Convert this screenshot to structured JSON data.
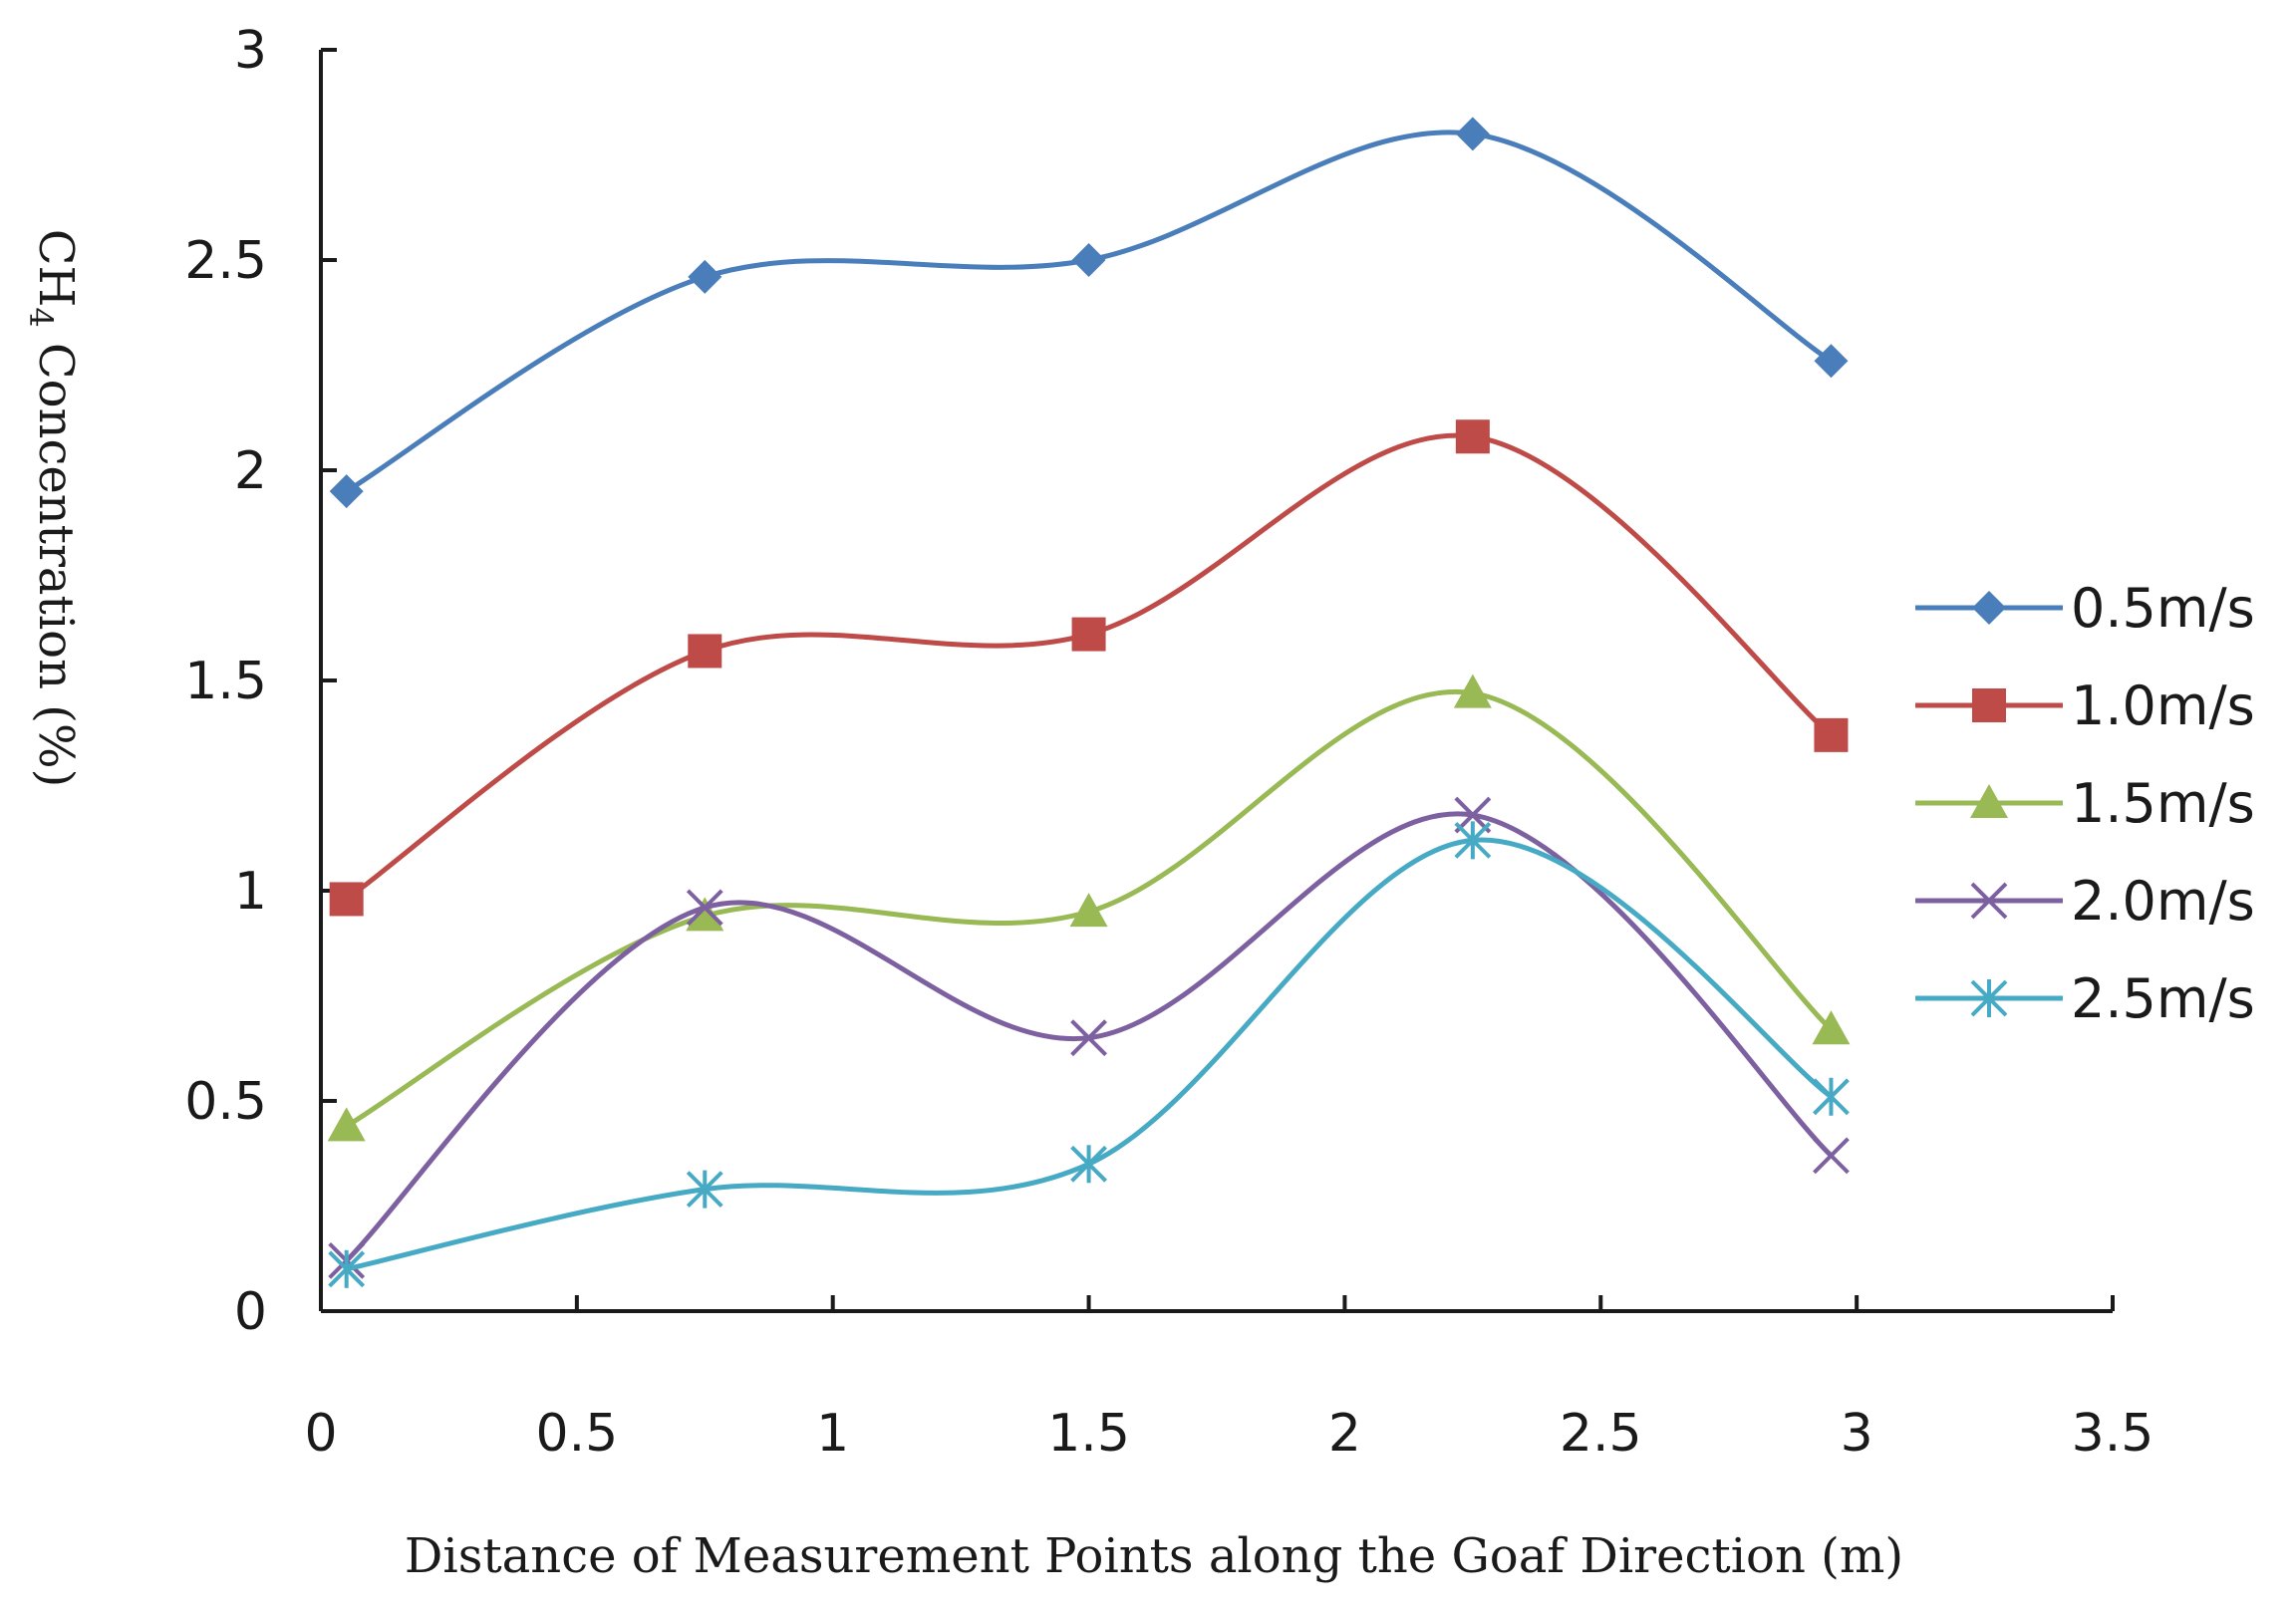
{
  "chart_data": {
    "type": "line",
    "smooth": true,
    "xlabel": "Distance of Measurement Points along the Goaf Direction (m)",
    "ylabel": {
      "prefix": "CH",
      "subscript": "4",
      "suffix": " Concentration (%)"
    },
    "xlim": [
      0,
      3.5
    ],
    "ylim": [
      0,
      3
    ],
    "xticks": [
      "0",
      "0.5",
      "1",
      "1.5",
      "2",
      "2.5",
      "3",
      "3.5"
    ],
    "yticks": [
      "0",
      "0.5",
      "1",
      "1.5",
      "2",
      "2.5",
      "3"
    ],
    "grid": false,
    "legend_position": "right",
    "x": [
      0.05,
      0.75,
      1.5,
      2.25,
      2.95
    ],
    "series": [
      {
        "name": "0.5m/s",
        "color": "#4a7ebb",
        "marker": "diamond",
        "values": [
          1.95,
          2.46,
          2.5,
          2.8,
          2.26
        ]
      },
      {
        "name": "1.0m/s",
        "color": "#be4b48",
        "marker": "square",
        "values": [
          0.98,
          1.57,
          1.61,
          2.08,
          1.37
        ]
      },
      {
        "name": "1.5m/s",
        "color": "#98b954",
        "marker": "triangle",
        "values": [
          0.44,
          0.94,
          0.95,
          1.47,
          0.67
        ]
      },
      {
        "name": "2.0m/s",
        "color": "#7d60a0",
        "marker": "x",
        "values": [
          0.12,
          0.96,
          0.65,
          1.18,
          0.37
        ]
      },
      {
        "name": "2.5m/s",
        "color": "#46aac5",
        "marker": "asterisk",
        "values": [
          0.1,
          0.29,
          0.35,
          1.12,
          0.51
        ]
      }
    ]
  }
}
